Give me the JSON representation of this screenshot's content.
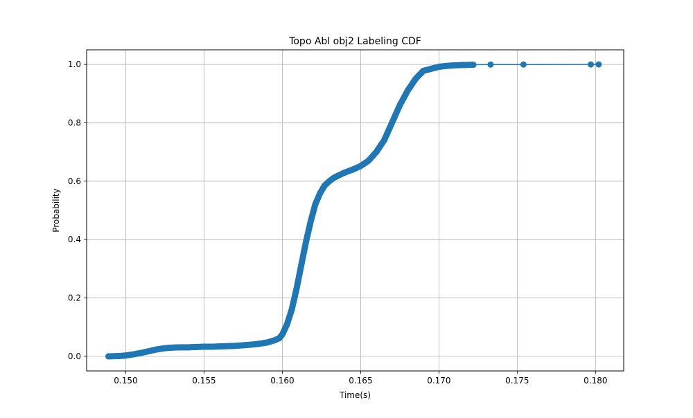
{
  "chart_data": {
    "type": "line",
    "title": "Topo Abl obj2 Labeling CDF",
    "xlabel": "Time(s)",
    "ylabel": "Probability",
    "xlim": [
      0.1475,
      0.1818
    ],
    "ylim": [
      -0.05,
      1.05
    ],
    "x_ticks": [
      0.15,
      0.155,
      0.16,
      0.165,
      0.17,
      0.175,
      0.18
    ],
    "x_tick_labels": [
      "0.150",
      "0.155",
      "0.160",
      "0.165",
      "0.170",
      "0.175",
      "0.180"
    ],
    "y_ticks": [
      0.0,
      0.2,
      0.4,
      0.6,
      0.8,
      1.0
    ],
    "y_tick_labels": [
      "0.0",
      "0.2",
      "0.4",
      "0.6",
      "0.8",
      "1.0"
    ],
    "grid": true,
    "marker": "circle",
    "series": [
      {
        "color": "#1f77b4",
        "x": [
          0.1489,
          0.1496,
          0.15,
          0.1505,
          0.151,
          0.1515,
          0.152,
          0.1525,
          0.153,
          0.1535,
          0.154,
          0.1545,
          0.155,
          0.1555,
          0.156,
          0.1565,
          0.157,
          0.1575,
          0.158,
          0.1585,
          0.159,
          0.1595,
          0.1598,
          0.16,
          0.1603,
          0.1606,
          0.1609,
          0.1612,
          0.1615,
          0.1618,
          0.1621,
          0.1624,
          0.1627,
          0.163,
          0.1633,
          0.1636,
          0.164,
          0.1645,
          0.165,
          0.1655,
          0.166,
          0.1665,
          0.167,
          0.1675,
          0.168,
          0.1685,
          0.169,
          0.1695,
          0.17,
          0.1705,
          0.171,
          0.1715,
          0.1722,
          0.1733,
          0.1754,
          0.1797,
          0.1802
        ],
        "y": [
          0.0,
          0.001,
          0.003,
          0.007,
          0.012,
          0.018,
          0.024,
          0.028,
          0.03,
          0.031,
          0.031,
          0.032,
          0.033,
          0.033,
          0.034,
          0.035,
          0.036,
          0.038,
          0.04,
          0.043,
          0.047,
          0.055,
          0.062,
          0.075,
          0.11,
          0.16,
          0.23,
          0.31,
          0.39,
          0.46,
          0.52,
          0.558,
          0.585,
          0.6,
          0.612,
          0.62,
          0.63,
          0.64,
          0.652,
          0.67,
          0.7,
          0.74,
          0.8,
          0.86,
          0.91,
          0.95,
          0.978,
          0.985,
          0.992,
          0.995,
          0.997,
          0.998,
          0.999,
          0.9995,
          0.9997,
          0.9999,
          1.0
        ]
      }
    ]
  }
}
